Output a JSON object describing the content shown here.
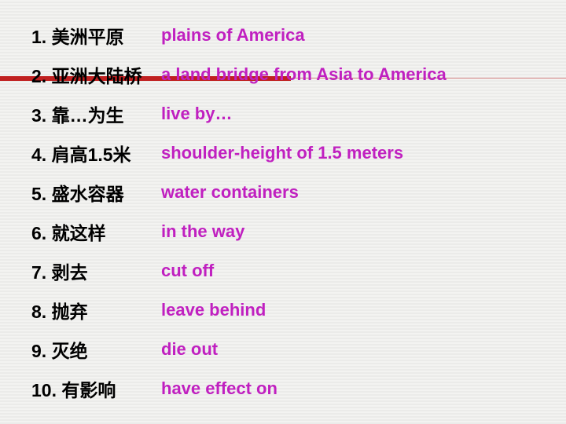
{
  "rows": [
    {
      "num": "1.",
      "term": "美洲平原",
      "translation": "plains of America"
    },
    {
      "num": "2.",
      "term": "亚洲大陆桥",
      "translation": "a land bridge from Asia to America"
    },
    {
      "num": "3.",
      "term": "靠…为生",
      "translation": "live by…"
    },
    {
      "num": "4.",
      "term": "肩高1.5米",
      "translation": "shoulder-height of 1.5 meters"
    },
    {
      "num": "5.",
      "term": "盛水容器",
      "translation": "water containers"
    },
    {
      "num": "6.",
      "term": "就这样",
      "translation": "in the way"
    },
    {
      "num": "7.",
      "term": "剥去",
      "translation": "cut off"
    },
    {
      "num": "8.",
      "term": "抛弃",
      "translation": "leave behind"
    },
    {
      "num": "9.",
      "term": "灭绝",
      "translation": "die out"
    },
    {
      "num": "10.",
      "term": "有影响",
      "translation": "have effect on"
    }
  ],
  "colors": {
    "translation": "#c020c0",
    "accent_bar": "#c02020",
    "text": "#000000"
  },
  "fonts": {
    "term_size": 23,
    "translation_size": 22,
    "weight": "bold"
  }
}
